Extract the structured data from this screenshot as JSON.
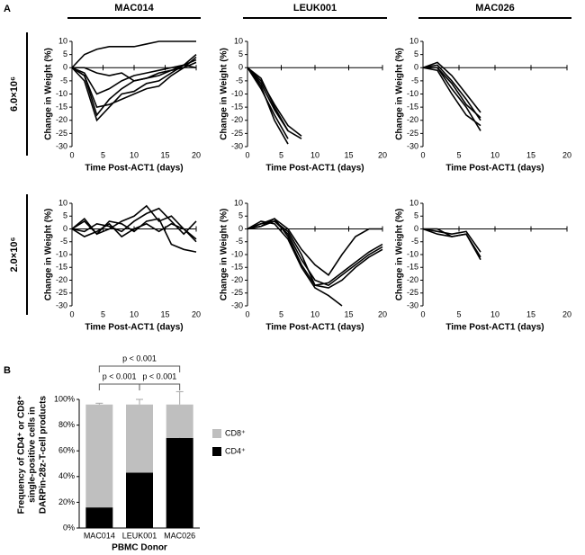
{
  "panel_labels": [
    "A",
    "B"
  ],
  "chart_data": [
    {
      "type": "line",
      "title": "MAC014",
      "row_label": "6.0×10⁶",
      "ylabel": "Change in Weight (%)",
      "xlabel": "Time Post-ACT1 (days)",
      "x": [
        0,
        2,
        4,
        6,
        8,
        10,
        12,
        14,
        16,
        18,
        20
      ],
      "xlim": [
        0,
        20
      ],
      "xticks": [
        0,
        5,
        10,
        15,
        20
      ],
      "ylim": [
        -30,
        10
      ],
      "yticks": [
        -30,
        -25,
        -20,
        -15,
        -10,
        -5,
        0,
        5,
        10
      ],
      "color": "#000000",
      "series": [
        {
          "values": [
            0,
            5,
            7,
            8,
            8,
            8,
            9,
            10,
            10,
            10,
            10
          ]
        },
        {
          "values": [
            0,
            -3,
            -18,
            -12,
            -8,
            -5,
            -4,
            -3,
            -1,
            0,
            2
          ]
        },
        {
          "values": [
            0,
            -5,
            -20,
            -15,
            -10,
            -9,
            -6,
            -5,
            -2,
            1,
            5
          ]
        },
        {
          "values": [
            0,
            -2,
            -10,
            -8,
            -5,
            -3,
            -2,
            -1,
            0,
            1,
            3
          ]
        },
        {
          "values": [
            0,
            -3,
            -15,
            -14,
            -12,
            -10,
            -8,
            -7,
            -3,
            0,
            4
          ]
        },
        {
          "values": [
            0,
            0,
            -2,
            -3,
            -2,
            -5,
            -4,
            -2,
            -1,
            1,
            0
          ]
        }
      ]
    },
    {
      "type": "line",
      "title": "LEUK001",
      "ylabel": "Change in Weight (%)",
      "xlabel": "Time Post-ACT1 (days)",
      "x": [
        0,
        2,
        4,
        6,
        8,
        10,
        12,
        14,
        16,
        18,
        20
      ],
      "xlim": [
        0,
        20
      ],
      "xticks": [
        0,
        5,
        10,
        15,
        20
      ],
      "ylim": [
        -30,
        10
      ],
      "yticks": [
        -30,
        -25,
        -20,
        -15,
        -10,
        -5,
        0,
        5,
        10
      ],
      "color": "#000000",
      "series": [
        {
          "values": [
            0,
            -6,
            -16,
            -24,
            -27,
            null,
            null,
            null,
            null,
            null,
            null
          ]
        },
        {
          "values": [
            0,
            -8,
            -18,
            -27,
            null,
            null,
            null,
            null,
            null,
            null,
            null
          ]
        },
        {
          "values": [
            0,
            -5,
            -14,
            -22,
            -26,
            null,
            null,
            null,
            null,
            null,
            null
          ]
        },
        {
          "values": [
            0,
            -7,
            -20,
            -29,
            null,
            null,
            null,
            null,
            null,
            null,
            null
          ]
        },
        {
          "values": [
            0,
            -4,
            -15,
            -24,
            null,
            null,
            null,
            null,
            null,
            null,
            null
          ]
        }
      ]
    },
    {
      "type": "line",
      "title": "MAC026",
      "ylabel": "Change in Weight (%)",
      "xlabel": "Time Post-ACT1 (days)",
      "x": [
        0,
        2,
        4,
        6,
        8,
        10,
        12,
        14,
        16,
        18,
        20
      ],
      "xlim": [
        0,
        20
      ],
      "xticks": [
        0,
        5,
        10,
        15,
        20
      ],
      "ylim": [
        -30,
        10
      ],
      "yticks": [
        -30,
        -25,
        -20,
        -15,
        -10,
        -5,
        0,
        5,
        10
      ],
      "color": "#000000",
      "series": [
        {
          "values": [
            0,
            1,
            -5,
            -12,
            -20,
            null,
            null,
            null,
            null,
            null,
            null
          ]
        },
        {
          "values": [
            0,
            0,
            -8,
            -15,
            -24,
            null,
            null,
            null,
            null,
            null,
            null
          ]
        },
        {
          "values": [
            0,
            2,
            -3,
            -10,
            -17,
            null,
            null,
            null,
            null,
            null,
            null
          ]
        },
        {
          "values": [
            0,
            -1,
            -10,
            -18,
            -22,
            null,
            null,
            null,
            null,
            null,
            null
          ]
        },
        {
          "values": [
            0,
            0,
            -6,
            -14,
            -19,
            null,
            null,
            null,
            null,
            null,
            null
          ]
        }
      ]
    },
    {
      "type": "line",
      "row_label": "2.0×10⁶",
      "ylabel": "Change in Weight (%)",
      "xlabel": "Time Post-ACT1 (days)",
      "x": [
        0,
        2,
        4,
        6,
        8,
        10,
        12,
        14,
        16,
        18,
        20
      ],
      "xlim": [
        0,
        20
      ],
      "xticks": [
        0,
        5,
        10,
        15,
        20
      ],
      "ylim": [
        -30,
        10
      ],
      "yticks": [
        -30,
        -25,
        -20,
        -15,
        -10,
        -5,
        0,
        5,
        10
      ],
      "color": "#000000",
      "series": [
        {
          "values": [
            0,
            3,
            -2,
            0,
            3,
            5,
            9,
            3,
            5,
            0,
            -4
          ]
        },
        {
          "values": [
            0,
            -1,
            2,
            1,
            -1,
            3,
            6,
            8,
            3,
            -2,
            3
          ]
        },
        {
          "values": [
            0,
            4,
            -2,
            3,
            2,
            -1,
            3,
            4,
            -6,
            -8,
            -9
          ]
        },
        {
          "values": [
            0,
            -3,
            -1,
            2,
            -3,
            0,
            2,
            -1,
            2,
            0,
            -5
          ]
        }
      ]
    },
    {
      "type": "line",
      "ylabel": "Change in Weight (%)",
      "xlabel": "Time Post-ACT1 (days)",
      "x": [
        0,
        2,
        4,
        6,
        8,
        10,
        12,
        14,
        16,
        18,
        20
      ],
      "xlim": [
        0,
        20
      ],
      "xticks": [
        0,
        5,
        10,
        15,
        20
      ],
      "ylim": [
        -30,
        10
      ],
      "yticks": [
        -30,
        -25,
        -20,
        -15,
        -10,
        -5,
        0,
        5,
        10
      ],
      "color": "#000000",
      "series": [
        {
          "values": [
            0,
            2,
            3,
            -2,
            -12,
            -20,
            -22,
            -18,
            -14,
            -10,
            -7
          ]
        },
        {
          "values": [
            0,
            1,
            4,
            -3,
            -14,
            -22,
            -23,
            -20,
            -15,
            -11,
            -8
          ]
        },
        {
          "values": [
            0,
            3,
            2,
            -4,
            -15,
            -23,
            -26,
            -30,
            null,
            null,
            null
          ]
        },
        {
          "values": [
            0,
            2,
            4,
            0,
            -8,
            -14,
            -18,
            -10,
            -3,
            0,
            0
          ]
        },
        {
          "values": [
            0,
            1,
            3,
            -1,
            -10,
            -22,
            -21,
            -17,
            -13,
            -9,
            -6
          ]
        }
      ]
    },
    {
      "type": "line",
      "ylabel": "Change in Weight (%)",
      "xlabel": "Time Post-ACT1 (days)",
      "x": [
        0,
        2,
        4,
        6,
        8,
        10,
        12,
        14,
        16,
        18,
        20
      ],
      "xlim": [
        0,
        20
      ],
      "xticks": [
        0,
        5,
        10,
        15,
        20
      ],
      "ylim": [
        -30,
        10
      ],
      "yticks": [
        -30,
        -25,
        -20,
        -15,
        -10,
        -5,
        0,
        5,
        10
      ],
      "color": "#000000",
      "series": [
        {
          "values": [
            0,
            -2,
            -3,
            -2,
            -11,
            null,
            null,
            null,
            null,
            null,
            null
          ]
        },
        {
          "values": [
            0,
            -1,
            -2,
            -1,
            -9,
            null,
            null,
            null,
            null,
            null,
            null
          ]
        },
        {
          "values": [
            0,
            0,
            -3,
            -2,
            -12,
            null,
            null,
            null,
            null,
            null,
            null
          ]
        }
      ]
    },
    {
      "type": "bar",
      "stacked": true,
      "ylabel": [
        "Frequency of CD4⁺ or CD8⁺",
        "single-positive cells in",
        "DARPin-28z-T-cell products"
      ],
      "xlabel": "PBMC Donor",
      "categories": [
        "MAC014",
        "LEUK001",
        "MAC026"
      ],
      "ylim": [
        0,
        100
      ],
      "yticks": [
        {
          "value": 0,
          "label": "0%"
        },
        {
          "value": 20,
          "label": "20%"
        },
        {
          "value": 40,
          "label": "40%"
        },
        {
          "value": 60,
          "label": "60%"
        },
        {
          "value": 80,
          "label": "80%"
        },
        {
          "value": 100,
          "label": "100%"
        }
      ],
      "series": [
        {
          "name": "CD4⁺",
          "color": "#000000",
          "values": [
            16,
            43,
            70
          ],
          "errors": [
            1.5,
            6,
            11
          ]
        },
        {
          "name": "CD8⁺",
          "color": "#bfbfbf",
          "values": [
            80,
            53,
            26
          ],
          "errors": [
            1,
            4,
            10
          ]
        }
      ],
      "annotations": [
        "p < 0.001",
        "p < 0.001",
        "p < 0.001"
      ]
    }
  ]
}
